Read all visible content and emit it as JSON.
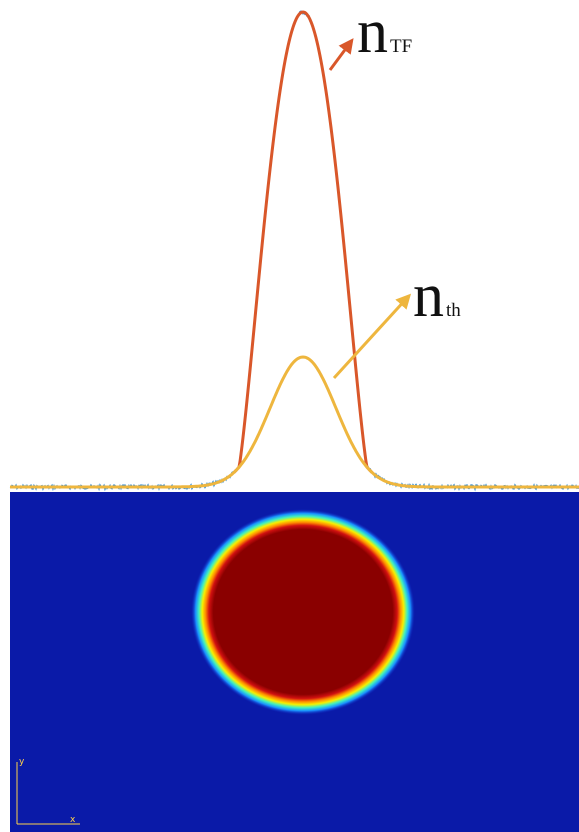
{
  "labels": [
    {
      "main": "n",
      "sub": "TF"
    },
    {
      "main": "n",
      "sub": "th"
    }
  ],
  "image_axes": {
    "x": "x",
    "y": "y"
  }
}
